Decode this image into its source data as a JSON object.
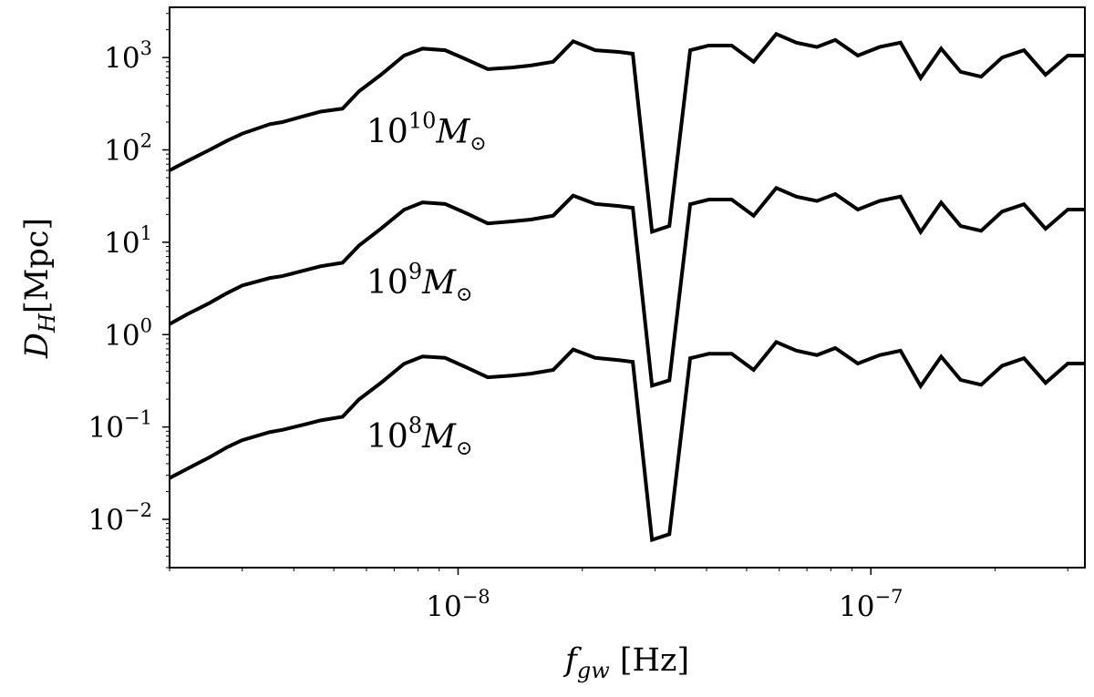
{
  "chart_data": {
    "type": "line",
    "x_scale": "log",
    "y_scale": "log",
    "xlim": [
      2e-09,
      3.3e-07
    ],
    "ylim": [
      0.003,
      3500
    ],
    "grid": false,
    "legend": "none",
    "line_color": "#000000",
    "xlabel": {
      "base": "f",
      "sub": "gw",
      "unit": " [Hz]"
    },
    "ylabel": {
      "base": "D",
      "sub": "H",
      "unit": "[Mpc]"
    },
    "x_ticks": [
      {
        "value": 1e-08,
        "base": "10",
        "exp": "−8"
      },
      {
        "value": 1e-07,
        "base": "10",
        "exp": "−7"
      }
    ],
    "x_minor_ticks": [
      2e-09,
      3e-09,
      4e-09,
      5e-09,
      6e-09,
      7e-09,
      8e-09,
      9e-09,
      2e-08,
      3e-08,
      4e-08,
      5e-08,
      6e-08,
      7e-08,
      8e-08,
      9e-08,
      2e-07,
      3e-07
    ],
    "y_ticks": [
      {
        "value": 0.01,
        "base": "10",
        "exp": "−2"
      },
      {
        "value": 0.1,
        "base": "10",
        "exp": "−1"
      },
      {
        "value": 1,
        "base": "10",
        "exp": "0"
      },
      {
        "value": 10,
        "base": "10",
        "exp": "1"
      },
      {
        "value": 100,
        "base": "10",
        "exp": "2"
      },
      {
        "value": 1000,
        "base": "10",
        "exp": "3"
      }
    ],
    "x": [
      2e-09,
      2.2e-09,
      2.5e-09,
      2.75e-09,
      3e-09,
      3.5e-09,
      3.75e-09,
      4.2e-09,
      4.65e-09,
      5.25e-09,
      5.75e-09,
      6.5e-09,
      7.4e-09,
      8.2e-09,
      9.3e-09,
      1.05e-08,
      1.18e-08,
      1.35e-08,
      1.5e-08,
      1.7e-08,
      1.9e-08,
      2.15e-08,
      2.45e-08,
      2.65e-08,
      2.95e-08,
      3.25e-08,
      3.65e-08,
      4.05e-08,
      4.6e-08,
      5.2e-08,
      5.9e-08,
      6.6e-08,
      7.4e-08,
      8.2e-08,
      9.3e-08,
      1.05e-07,
      1.18e-07,
      1.32e-07,
      1.48e-07,
      1.65e-07,
      1.85e-07,
      2.08e-07,
      2.35e-07,
      2.65e-07,
      3e-07,
      3.3e-07
    ],
    "series": [
      {
        "mass": "10^10",
        "label_base": "10",
        "label_exp": "10",
        "values": [
          60,
          75,
          100,
          125,
          150,
          190,
          200,
          230,
          260,
          280,
          430,
          650,
          1050,
          1250,
          1200,
          950,
          750,
          780,
          820,
          900,
          1500,
          1200,
          1150,
          1100,
          13,
          15,
          1200,
          1350,
          1350,
          900,
          1800,
          1450,
          1300,
          1550,
          1050,
          1300,
          1450,
          600,
          1250,
          700,
          620,
          1000,
          1200,
          650,
          1050,
          1050
        ]
      },
      {
        "mass": "10^9",
        "label_base": "10",
        "label_exp": "9",
        "values": [
          1.3,
          1.65,
          2.2,
          2.8,
          3.4,
          4.1,
          4.3,
          4.9,
          5.5,
          6.0,
          9.2,
          14,
          22.5,
          27,
          26,
          20.5,
          16,
          16.8,
          17.6,
          19.4,
          32,
          26,
          24.7,
          23.6,
          0.28,
          0.32,
          25.8,
          29,
          29,
          19.4,
          38.7,
          31.2,
          28,
          33.3,
          22.6,
          28,
          31.2,
          12.9,
          26.9,
          15,
          13.3,
          21.5,
          25.8,
          14,
          22.6,
          22.6
        ]
      },
      {
        "mass": "10^8",
        "label_base": "10",
        "label_exp": "8",
        "values": [
          0.028,
          0.035,
          0.047,
          0.06,
          0.072,
          0.088,
          0.093,
          0.105,
          0.118,
          0.129,
          0.198,
          0.3,
          0.484,
          0.58,
          0.56,
          0.44,
          0.345,
          0.36,
          0.378,
          0.415,
          0.69,
          0.56,
          0.53,
          0.507,
          0.006,
          0.0069,
          0.555,
          0.62,
          0.62,
          0.415,
          0.83,
          0.67,
          0.6,
          0.716,
          0.486,
          0.6,
          0.67,
          0.277,
          0.578,
          0.323,
          0.286,
          0.46,
          0.555,
          0.3,
          0.486,
          0.486
        ]
      }
    ],
    "series_label_positions": [
      {
        "x": 6e-09,
        "y": 120
      },
      {
        "x": 6e-09,
        "y": 2.8
      },
      {
        "x": 6e-09,
        "y": 0.06
      }
    ],
    "mass_unit_symbol": "M",
    "sun_symbol": "⊙"
  }
}
